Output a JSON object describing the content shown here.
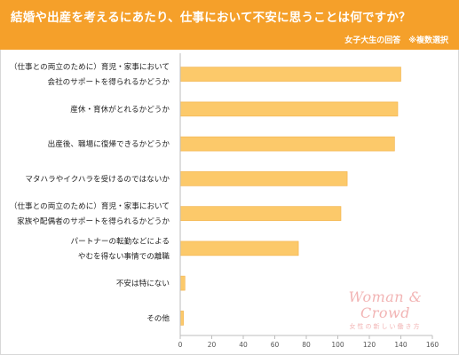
{
  "header": {
    "title": "結婚や出産を考えるにあたり、仕事において不安に思うことは何ですか？",
    "subtitle": "女子大生の回答　※複数選択"
  },
  "watermark": {
    "brand": "Woman & Crowd",
    "tagline": "女性の新しい働き方"
  },
  "colors": {
    "header": "#f5a02a",
    "bar": "#fcc96a",
    "bar_edge": "#f2b24a"
  },
  "chart_data": {
    "type": "bar",
    "orientation": "horizontal",
    "categories": [
      [
        "（仕事との両立のために）育児・家事において",
        "会社のサポートを得られるかどうか"
      ],
      [
        "産休・育休がとれるかどうか"
      ],
      [
        "出産後、職場に復帰できるかどうか"
      ],
      [
        "マタハラやイクハラを受けるのではないか"
      ],
      [
        "（仕事との両立のために）育児・家事において",
        "家族や配偶者のサポートを得られるかどうか"
      ],
      [
        "パートナーの転勤などによる",
        "やむを得ない事情での離職"
      ],
      [
        "不安は特にない"
      ],
      [
        "その他"
      ]
    ],
    "values": [
      140,
      138,
      136,
      106,
      102,
      75,
      3,
      2
    ],
    "xlim": [
      0,
      160
    ],
    "xticks": [
      0,
      20,
      40,
      60,
      80,
      100,
      120,
      140,
      160
    ],
    "grid": false,
    "legend": "none"
  }
}
